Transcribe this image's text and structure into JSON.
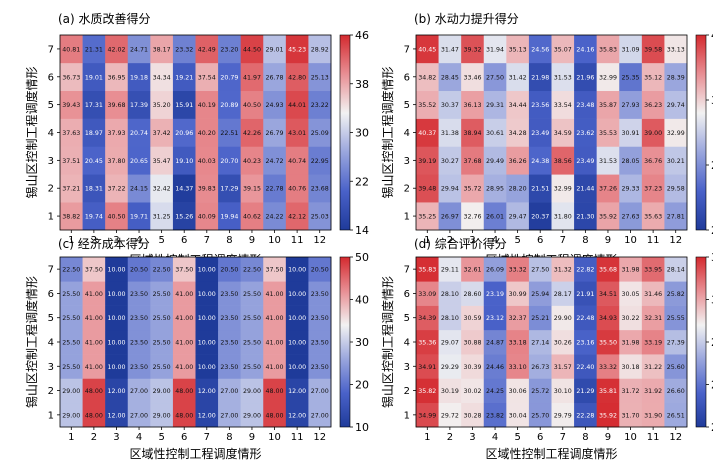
{
  "chart_data": [
    {
      "type": "heatmap",
      "title": "(a) 水质改善得分",
      "xlabel": "区域性控制工程调度情形",
      "ylabel": "锡山区控制工程调度情形",
      "x_categories": [
        "1",
        "2",
        "3",
        "4",
        "5",
        "6",
        "7",
        "8",
        "9",
        "10",
        "11",
        "12"
      ],
      "y_categories": [
        "1",
        "2",
        "3",
        "4",
        "5",
        "6",
        "7"
      ],
      "colorbar": {
        "min": 14,
        "max": 46,
        "ticks": [
          "14",
          "22",
          "30",
          "38",
          "46"
        ]
      },
      "colormap": [
        "#1f3b9a",
        "#4a62c9",
        "#9aa6dd",
        "#f2f2f2",
        "#e88f94",
        "#d42a2f"
      ],
      "values": [
        [
          "38.82",
          "19.74",
          "40.50",
          "19.71",
          "31.25",
          "15.26",
          "40.09",
          "19.94",
          "40.62",
          "24.22",
          "42.12",
          "25.03"
        ],
        [
          "37.21",
          "18.31",
          "37.22",
          "24.15",
          "32.42",
          "14.37",
          "39.83",
          "17.29",
          "39.15",
          "22.78",
          "40.76",
          "23.68"
        ],
        [
          "37.51",
          "20.45",
          "37.80",
          "20.65",
          "35.47",
          "19.10",
          "40.03",
          "20.70",
          "40.23",
          "24.72",
          "40.74",
          "22.95"
        ],
        [
          "37.63",
          "18.97",
          "37.93",
          "20.74",
          "37.42",
          "20.96",
          "40.20",
          "22.51",
          "42.26",
          "26.79",
          "43.01",
          "25.09"
        ],
        [
          "39.43",
          "17.31",
          "39.68",
          "17.39",
          "35.20",
          "15.91",
          "40.19",
          "20.89",
          "40.50",
          "24.93",
          "44.01",
          "23.22"
        ],
        [
          "36.73",
          "19.01",
          "36.95",
          "19.18",
          "34.34",
          "19.21",
          "37.54",
          "20.79",
          "41.97",
          "26.78",
          "42.80",
          "25.13"
        ],
        [
          "40.81",
          "21.31",
          "42.02",
          "24.71",
          "38.17",
          "23.32",
          "42.49",
          "23.20",
          "44.50",
          "29.01",
          "45.23",
          "28.92"
        ]
      ]
    },
    {
      "type": "heatmap",
      "title": "(b) 水动力提升得分",
      "xlabel": "区域性控制工程调度情形",
      "ylabel": "锡山区控制工程调度情形",
      "x_categories": [
        "1",
        "2",
        "3",
        "4",
        "5",
        "6",
        "7",
        "8",
        "9",
        "10",
        "11",
        "12"
      ],
      "y_categories": [
        "1",
        "2",
        "3",
        "4",
        "5",
        "6",
        "7"
      ],
      "colorbar": {
        "min": 20,
        "max": 41,
        "ticks": [
          "20",
          "27",
          "34",
          "41"
        ]
      },
      "colormap": [
        "#1f3b9a",
        "#4a62c9",
        "#9aa6dd",
        "#f2f2f2",
        "#e88f94",
        "#d42a2f"
      ],
      "values": [
        [
          "35.25",
          "26.97",
          "32.76",
          "26.01",
          "29.47",
          "20.37",
          "31.80",
          "21.30",
          "35.92",
          "27.63",
          "35.63",
          "27.81"
        ],
        [
          "39.48",
          "29.94",
          "35.72",
          "28.95",
          "28.20",
          "21.51",
          "32.99",
          "21.44",
          "37.26",
          "29.33",
          "37.23",
          "29.58"
        ],
        [
          "39.19",
          "30.27",
          "37.68",
          "29.49",
          "36.26",
          "24.38",
          "38.56",
          "23.49",
          "31.53",
          "28.05",
          "36.76",
          "30.21"
        ],
        [
          "40.37",
          "31.38",
          "38.94",
          "30.61",
          "34.28",
          "23.49",
          "34.59",
          "23.62",
          "35.53",
          "30.91",
          "39.00",
          "32.99"
        ],
        [
          "35.52",
          "30.37",
          "36.13",
          "29.31",
          "34.44",
          "23.56",
          "33.54",
          "23.48",
          "35.87",
          "27.93",
          "36.23",
          "29.74"
        ],
        [
          "34.82",
          "28.45",
          "33.46",
          "27.50",
          "31.42",
          "21.98",
          "31.53",
          "21.96",
          "32.99",
          "25.35",
          "35.12",
          "28.39"
        ],
        [
          "40.45",
          "31.47",
          "39.32",
          "31.94",
          "35.13",
          "24.56",
          "35.07",
          "24.16",
          "35.83",
          "31.09",
          "39.58",
          "33.13"
        ]
      ]
    },
    {
      "type": "heatmap",
      "title": "(c) 经济成本得分",
      "xlabel": "区域性控制工程调度情形",
      "ylabel": "锡山区控制工程调度情形",
      "x_categories": [
        "1",
        "2",
        "3",
        "4",
        "5",
        "6",
        "7",
        "8",
        "9",
        "10",
        "11",
        "12"
      ],
      "y_categories": [
        "1",
        "2",
        "3",
        "4",
        "5",
        "6",
        "7"
      ],
      "colorbar": {
        "min": 10,
        "max": 50,
        "ticks": [
          "10",
          "20",
          "30",
          "40",
          "50"
        ]
      },
      "colormap": [
        "#1f3b9a",
        "#4a62c9",
        "#9aa6dd",
        "#f2f2f2",
        "#e88f94",
        "#d42a2f"
      ],
      "values": [
        [
          "29.00",
          "48.00",
          "12.00",
          "27.00",
          "29.00",
          "48.00",
          "12.00",
          "27.00",
          "29.00",
          "48.00",
          "12.00",
          "27.00"
        ],
        [
          "29.00",
          "48.00",
          "12.00",
          "27.00",
          "29.00",
          "48.00",
          "12.00",
          "27.00",
          "29.00",
          "48.00",
          "12.00",
          "27.00"
        ],
        [
          "25.50",
          "41.00",
          "10.00",
          "23.50",
          "25.50",
          "41.00",
          "10.00",
          "23.50",
          "25.50",
          "41.00",
          "10.00",
          "23.50"
        ],
        [
          "25.50",
          "41.00",
          "10.00",
          "23.50",
          "25.50",
          "41.00",
          "10.00",
          "23.50",
          "25.50",
          "41.00",
          "10.00",
          "23.50"
        ],
        [
          "25.50",
          "41.00",
          "10.00",
          "23.50",
          "25.50",
          "41.00",
          "10.00",
          "23.50",
          "25.50",
          "41.00",
          "10.00",
          "23.50"
        ],
        [
          "25.50",
          "41.00",
          "10.00",
          "23.50",
          "25.50",
          "41.00",
          "10.00",
          "23.50",
          "25.50",
          "41.00",
          "10.00",
          "23.50"
        ],
        [
          "22.50",
          "37.50",
          "10.00",
          "20.50",
          "22.50",
          "37.50",
          "10.00",
          "20.50",
          "22.50",
          "37.50",
          "10.00",
          "20.50"
        ]
      ]
    },
    {
      "type": "heatmap",
      "title": "(d) 综合评价得分",
      "xlabel": "区域性控制工程调度情形",
      "ylabel": "锡山区控制工程调度情形",
      "x_categories": [
        "1",
        "2",
        "3",
        "4",
        "5",
        "6",
        "7",
        "8",
        "9",
        "10",
        "11",
        "12"
      ],
      "y_categories": [
        "1",
        "2",
        "3",
        "4",
        "5",
        "6",
        "7"
      ],
      "colorbar": {
        "min": 20,
        "max": 36,
        "ticks": [
          "20",
          "24",
          "28",
          "32",
          "36"
        ]
      },
      "colormap": [
        "#1f3b9a",
        "#4a62c9",
        "#9aa6dd",
        "#f2f2f2",
        "#e88f94",
        "#d42a2f"
      ],
      "values": [
        [
          "34.99",
          "29.72",
          "30.28",
          "23.82",
          "30.04",
          "25.70",
          "29.79",
          "22.28",
          "35.92",
          "31.70",
          "31.90",
          "26.51"
        ],
        [
          "35.82",
          "30.19",
          "30.02",
          "24.25",
          "30.06",
          "25.72",
          "30.10",
          "21.29",
          "35.81",
          "31.72",
          "31.92",
          "26.60"
        ],
        [
          "34.91",
          "29.29",
          "30.39",
          "24.46",
          "33.10",
          "26.73",
          "31.57",
          "22.40",
          "33.32",
          "30.18",
          "31.22",
          "25.60"
        ],
        [
          "35.36",
          "29.07",
          "30.88",
          "24.87",
          "33.18",
          "27.14",
          "30.26",
          "23.16",
          "35.50",
          "31.98",
          "33.19",
          "27.39"
        ],
        [
          "34.39",
          "28.10",
          "30.59",
          "23.12",
          "32.37",
          "25.21",
          "29.90",
          "22.48",
          "34.93",
          "30.22",
          "32.31",
          "25.55"
        ],
        [
          "33.09",
          "28.10",
          "28.60",
          "23.19",
          "30.99",
          "25.94",
          "28.17",
          "21.91",
          "34.51",
          "30.05",
          "31.46",
          "25.82"
        ],
        [
          "35.83",
          "29.11",
          "32.61",
          "26.09",
          "33.32",
          "27.50",
          "31.32",
          "22.82",
          "35.68",
          "31.98",
          "33.95",
          "28.14"
        ]
      ]
    }
  ]
}
